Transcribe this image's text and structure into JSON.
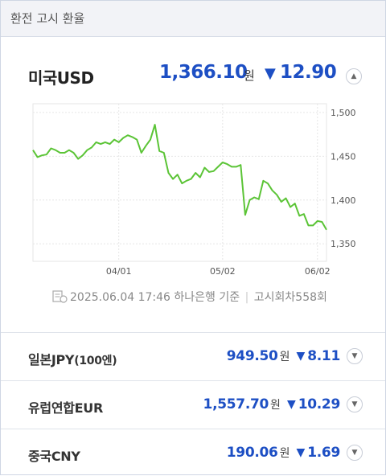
{
  "header": {
    "title": "환전 고시 환율"
  },
  "main": {
    "currency": "미국USD",
    "rate": "1,366.10",
    "unit": "원",
    "arrow": "▼",
    "change": "12.90",
    "toggle_icon": "chevron-up-icon"
  },
  "chart_data": {
    "type": "line",
    "x": [
      "03/05",
      "03/06",
      "03/07",
      "03/10",
      "03/11",
      "03/12",
      "03/13",
      "03/14",
      "03/17",
      "03/18",
      "03/19",
      "03/20",
      "03/21",
      "03/24",
      "03/25",
      "03/26",
      "03/27",
      "03/28",
      "03/31",
      "04/01",
      "04/02",
      "04/03",
      "04/04",
      "04/07",
      "04/08",
      "04/09",
      "04/10",
      "04/11",
      "04/14",
      "04/15",
      "04/16",
      "04/17",
      "04/18",
      "04/21",
      "04/22",
      "04/23",
      "04/24",
      "04/25",
      "04/28",
      "04/29",
      "04/30",
      "05/01",
      "05/02",
      "05/05",
      "05/06",
      "05/07",
      "05/08",
      "05/09",
      "05/12",
      "05/13",
      "05/14",
      "05/15",
      "05/16",
      "05/19",
      "05/20",
      "05/21",
      "05/22",
      "05/23",
      "05/26",
      "05/27",
      "05/28",
      "05/29",
      "05/30",
      "06/02",
      "06/03",
      "06/04"
    ],
    "y": [
      1457,
      1449,
      1451,
      1452,
      1459,
      1457,
      1454,
      1454,
      1457,
      1454,
      1447,
      1451,
      1457,
      1460,
      1466,
      1464,
      1466,
      1464,
      1469,
      1466,
      1471,
      1474,
      1472,
      1469,
      1454,
      1462,
      1469,
      1486,
      1456,
      1454,
      1431,
      1424,
      1429,
      1419,
      1422,
      1424,
      1431,
      1426,
      1437,
      1432,
      1433,
      1438,
      1443,
      1441,
      1438,
      1438,
      1440,
      1383,
      1400,
      1403,
      1401,
      1422,
      1419,
      1411,
      1406,
      1398,
      1402,
      1392,
      1396,
      1382,
      1384,
      1371,
      1371,
      1376,
      1375,
      1366
    ],
    "x_ticks": [
      "04/01",
      "05/02",
      "06/02"
    ],
    "y_ticks": [
      1500,
      1450,
      1400,
      1350
    ],
    "ylim": [
      1330,
      1510
    ],
    "grid": true,
    "line_color": "#5bc436"
  },
  "info": {
    "datetime": "2025.06.04 17:46",
    "bank": "하나은행 기준",
    "notice": "고시회차558회"
  },
  "rows": [
    {
      "currency": "일본JPY",
      "sub": "(100엔)",
      "rate": "949.50",
      "unit": "원",
      "arrow": "▼",
      "change": "8.11",
      "toggle_icon": "chevron-down-icon"
    },
    {
      "currency": "유럽연합EUR",
      "sub": "",
      "rate": "1,557.70",
      "unit": "원",
      "arrow": "▼",
      "change": "10.29",
      "toggle_icon": "chevron-down-icon"
    },
    {
      "currency": "중국CNY",
      "sub": "",
      "rate": "190.06",
      "unit": "원",
      "arrow": "▼",
      "change": "1.69",
      "toggle_icon": "chevron-down-icon"
    }
  ]
}
